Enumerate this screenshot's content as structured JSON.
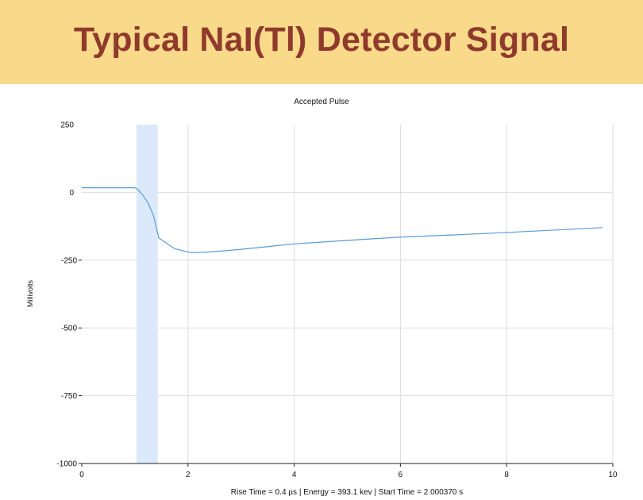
{
  "slide": {
    "title": "Typical NaI(Tl) Detector Signal"
  },
  "colors": {
    "banner_bg": "#f9d98a",
    "title_color": "#8f3a2c",
    "trace": "#5b9bd5",
    "highlight": "#dbe9fb",
    "grid": "#dddddd"
  },
  "chart_data": {
    "type": "line",
    "title": "Accepted Pulse",
    "xlabel": "Rise Time = 0.4 µs | Energy = 393.1 kev | Start Time = 2.000370 s",
    "ylabel": "Millivolts",
    "xlim": [
      0,
      10
    ],
    "ylim": [
      -1000,
      250
    ],
    "x_ticks": [
      0,
      2,
      4,
      6,
      8,
      10
    ],
    "y_ticks": [
      250,
      0,
      -250,
      -500,
      -750,
      -1000
    ],
    "grid": true,
    "highlight_band": [
      1.03,
      1.43
    ],
    "series": [
      {
        "x": [
          0,
          0.5,
          1.0,
          1.05,
          1.15,
          1.25,
          1.35,
          1.45,
          1.6,
          1.75,
          1.9,
          2.0,
          2.1,
          2.3,
          2.6,
          3.0,
          3.5,
          4.0,
          5.0,
          6.0,
          7.0,
          8.0,
          9.0,
          9.8
        ],
        "y": [
          17,
          17,
          17,
          12,
          -10,
          -40,
          -85,
          -168,
          -188,
          -208,
          -215,
          -220,
          -222,
          -221,
          -217,
          -210,
          -200,
          -190,
          -177,
          -165,
          -157,
          -148,
          -138,
          -130
        ]
      }
    ]
  }
}
